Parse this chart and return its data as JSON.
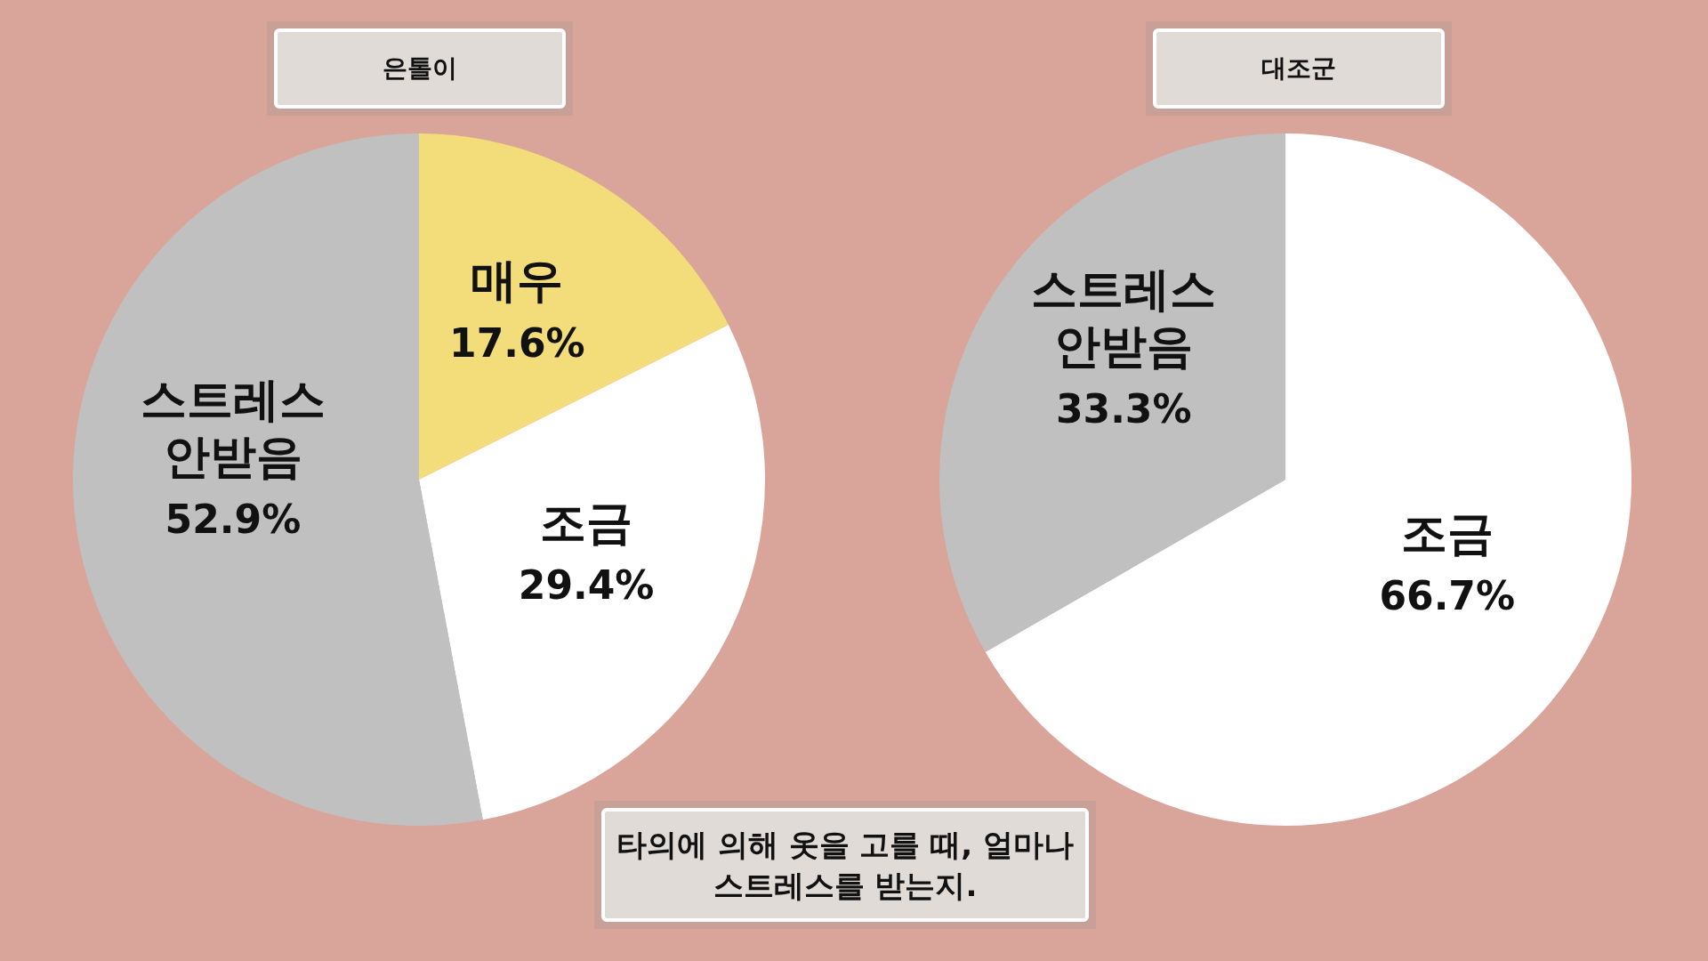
{
  "chart_data": [
    {
      "type": "pie",
      "title": "은톨이",
      "categories": [
        "매우",
        "조금",
        "스트레스 안받음"
      ],
      "values": [
        17.6,
        29.4,
        52.9
      ],
      "colors": [
        "#f2dd7a",
        "#ffffff",
        "#c0c0c0"
      ],
      "value_labels": [
        "17.6%",
        "29.4%",
        "52.9%"
      ]
    },
    {
      "type": "pie",
      "title": "대조군",
      "categories": [
        "조금",
        "스트레스 안받음"
      ],
      "values": [
        66.7,
        33.3
      ],
      "colors": [
        "#ffffff",
        "#c0c0c0"
      ],
      "value_labels": [
        "66.7%",
        "33.3%"
      ],
      "annotations": [
        "타의에 의해 옷을 고를 때, 얼마나 스트레스를 받는지."
      ]
    }
  ]
}
